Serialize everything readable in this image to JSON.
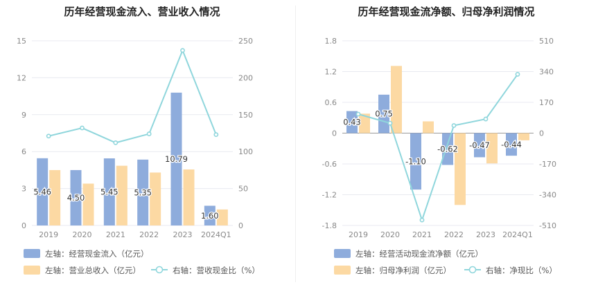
{
  "colors": {
    "bar_primary": "#8eacdc",
    "bar_secondary": "#fcd9a3",
    "line": "#8fd6dc",
    "axis_text": "#888888",
    "title": "#222222",
    "grid": "#e8eaf0",
    "zero_line": "#999999",
    "label_text": "#333333"
  },
  "chart_data": [
    {
      "type": "bar",
      "title": "历年经营现金流入、营业收入情况",
      "categories": [
        "2019",
        "2020",
        "2021",
        "2022",
        "2023",
        "2024Q1"
      ],
      "left_axis": {
        "ticks": [
          "0",
          "3",
          "6",
          "9",
          "12",
          "15"
        ],
        "ylim": [
          0,
          15
        ]
      },
      "right_axis": {
        "ticks": [
          "0",
          "50",
          "100",
          "150",
          "200",
          "250"
        ],
        "ylim": [
          0,
          250
        ]
      },
      "series": [
        {
          "name": "左轴：经营现金流入（亿元）",
          "kind": "bar",
          "axis": "left",
          "values": [
            5.46,
            4.5,
            5.45,
            5.35,
            10.79,
            1.6
          ],
          "labels": [
            "5.46",
            "4.50",
            "5.45",
            "5.35",
            "10.79",
            "1.60"
          ]
        },
        {
          "name": "左轴：营业总收入（亿元）",
          "kind": "bar",
          "axis": "left",
          "values": [
            4.5,
            3.4,
            4.85,
            4.3,
            4.55,
            1.3
          ]
        },
        {
          "name": "右轴：营收现金比（%）",
          "kind": "line",
          "axis": "right",
          "values": [
            121,
            132,
            112,
            124,
            237,
            123
          ]
        }
      ]
    },
    {
      "type": "bar",
      "title": "历年经营现金流净额、归母净利润情况",
      "categories": [
        "2019",
        "2020",
        "2021",
        "2022",
        "2023",
        "2024Q1"
      ],
      "left_axis": {
        "ticks": [
          "-1.8",
          "-1.2",
          "-0.6",
          "0",
          "0.6",
          "1.2",
          "1.8"
        ],
        "ylim": [
          -1.8,
          1.8
        ]
      },
      "right_axis": {
        "ticks": [
          "-510",
          "-340",
          "-170",
          "0",
          "170",
          "340",
          "510"
        ],
        "ylim": [
          -510,
          510
        ]
      },
      "series": [
        {
          "name": "左轴：经营活动现金流净额（亿元）",
          "kind": "bar",
          "axis": "left",
          "values": [
            0.43,
            0.75,
            -1.1,
            -0.62,
            -0.47,
            -0.44
          ],
          "labels": [
            "0.43",
            "0.75",
            "-1.10",
            "-0.62",
            "-0.47",
            "-0.44"
          ]
        },
        {
          "name": "左轴：归母净利润（亿元）",
          "kind": "bar",
          "axis": "left",
          "values": [
            0.38,
            1.31,
            0.23,
            -1.4,
            -0.59,
            -0.14
          ]
        },
        {
          "name": "右轴：净现比（%）",
          "kind": "line",
          "axis": "right",
          "values": [
            105,
            55,
            -480,
            42,
            78,
            325
          ]
        }
      ]
    }
  ]
}
